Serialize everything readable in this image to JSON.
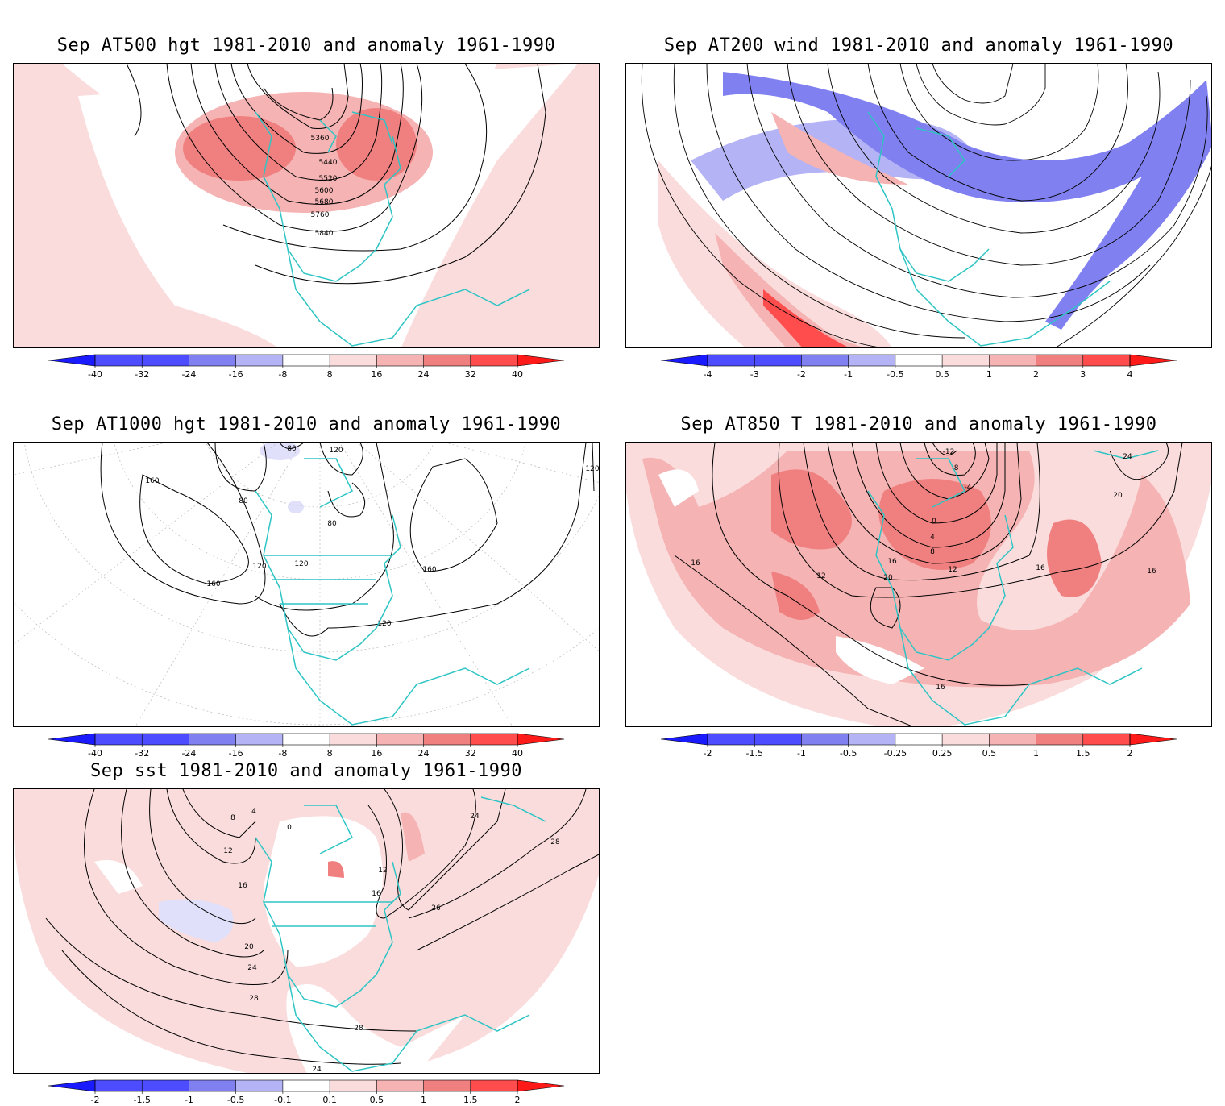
{
  "panels": [
    {
      "id": "at500",
      "title": "Sep AT500 hgt 1981-2010 and anomaly 1961-1990",
      "contour_labels": [
        "5360",
        "5440",
        "5520",
        "5600",
        "5680",
        "5760",
        "5840"
      ],
      "colorbar": [
        "-40",
        "-32",
        "-24",
        "-16",
        "-8",
        "8",
        "16",
        "24",
        "32",
        "40"
      ]
    },
    {
      "id": "at200",
      "title": "Sep AT200 wind 1981-2010 and anomaly 1961-1990",
      "contour_labels": [],
      "colorbar": [
        "-4",
        "-3",
        "-2",
        "-1",
        "-0.5",
        "0.5",
        "1",
        "2",
        "3",
        "4"
      ]
    },
    {
      "id": "at1000",
      "title": "Sep AT1000 hgt 1981-2010 and anomaly 1961-1990",
      "contour_labels": [
        "80",
        "120",
        "160",
        "80",
        "80",
        "120",
        "120",
        "160",
        "160",
        "120",
        "120"
      ],
      "colorbar": [
        "-40",
        "-32",
        "-24",
        "-16",
        "-8",
        "8",
        "16",
        "24",
        "32",
        "40"
      ]
    },
    {
      "id": "at850",
      "title": "Sep AT850 T 1981-2010 and anomaly 1961-1990",
      "contour_labels": [
        "-12",
        "-8",
        "-4",
        "0",
        "4",
        "8",
        "12",
        "16",
        "20",
        "12",
        "16",
        "16",
        "20",
        "24",
        "16",
        "16"
      ],
      "colorbar": [
        "-2",
        "-1.5",
        "-1",
        "-0.5",
        "-0.25",
        "0.25",
        "0.5",
        "1",
        "1.5",
        "2"
      ]
    },
    {
      "id": "sst",
      "title": "Sep sst 1981-2010 and anomaly 1961-1990",
      "contour_labels": [
        "0",
        "4",
        "8",
        "12",
        "16",
        "20",
        "24",
        "28",
        "28",
        "24",
        "26",
        "28",
        "24",
        "12",
        "16"
      ],
      "colorbar": [
        "-2",
        "-1.5",
        "-1",
        "-0.5",
        "-0.1",
        "0.1",
        "0.5",
        "1",
        "1.5",
        "2"
      ]
    }
  ],
  "colors": {
    "coast": "#2ec4c4",
    "neg": [
      "#1a1aff",
      "#4d4dff",
      "#8080f0",
      "#b3b3f5",
      "#e0e0fa"
    ],
    "pos": [
      "#fadcdc",
      "#f5b3b3",
      "#f08080",
      "#ff4d4d",
      "#ff1a1a"
    ]
  }
}
